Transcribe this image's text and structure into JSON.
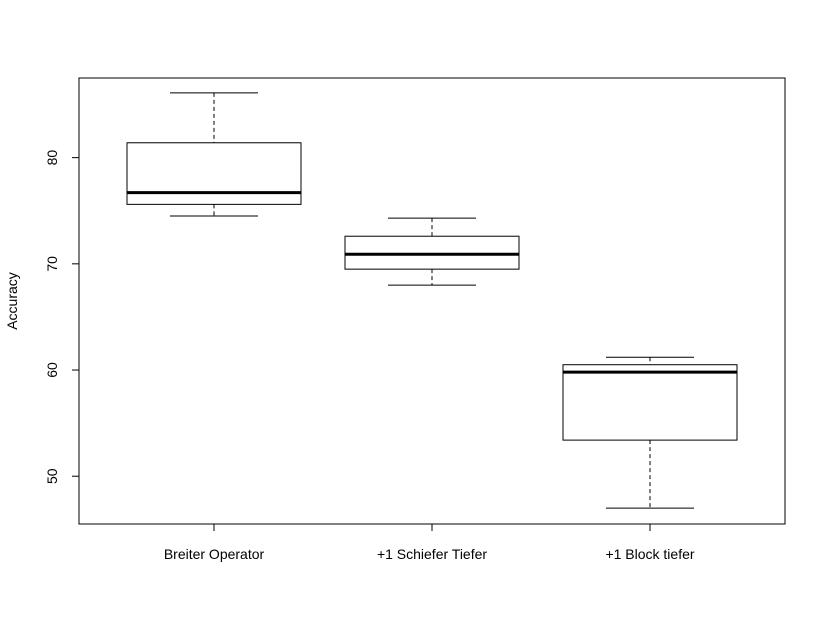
{
  "chart_data": {
    "type": "boxplot",
    "title": "",
    "xlabel": "",
    "ylabel": "Accuracy",
    "ylim": [
      45.5,
      87.5
    ],
    "yticks": [
      50,
      60,
      70,
      80
    ],
    "grid": false,
    "categories": [
      "Breiter Operator",
      "+1 Schiefer Tiefer",
      "+1 Block tiefer"
    ],
    "boxes": [
      {
        "whisker_low": 74.5,
        "q1": 75.6,
        "median": 76.7,
        "q3": 81.4,
        "whisker_high": 86.1
      },
      {
        "whisker_low": 68.0,
        "q1": 69.5,
        "median": 70.9,
        "q3": 72.6,
        "whisker_high": 74.3
      },
      {
        "whisker_low": 47.0,
        "q1": 53.4,
        "median": 59.8,
        "q3": 60.5,
        "whisker_high": 61.2
      }
    ]
  }
}
